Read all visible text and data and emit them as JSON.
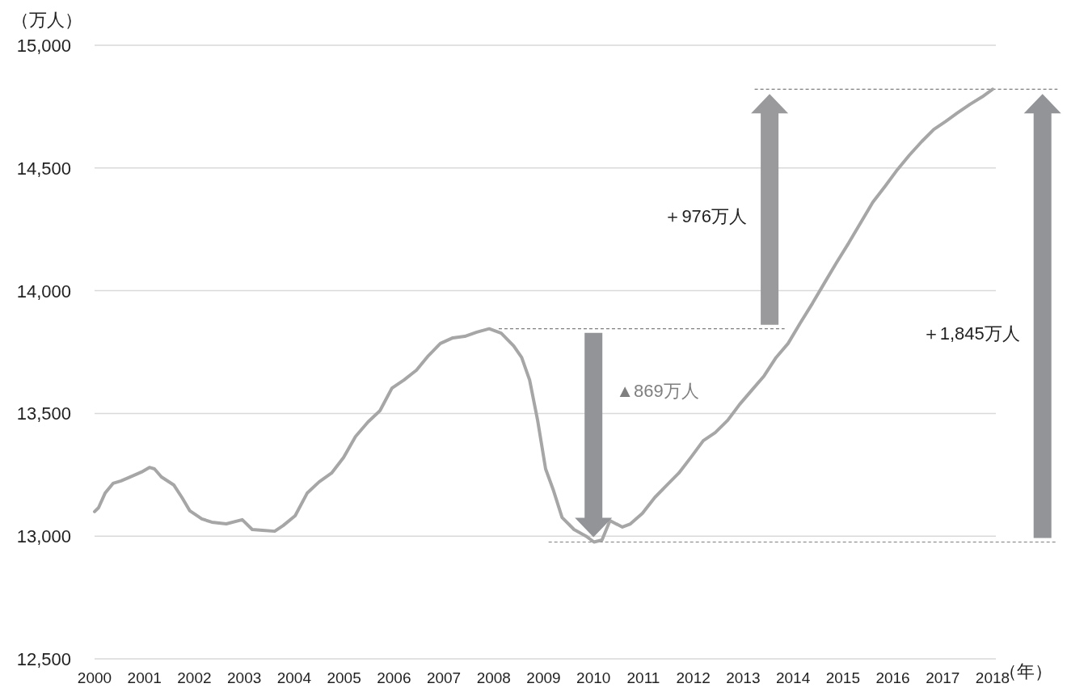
{
  "chart_data": {
    "type": "line",
    "ylabel": "（万人）",
    "xlabel": "（年）",
    "grid": "y",
    "xlim": [
      2000,
      2018
    ],
    "xticks": [
      2000,
      2001,
      2002,
      2003,
      2004,
      2005,
      2006,
      2007,
      2008,
      2009,
      2010,
      2011,
      2012,
      2013,
      2014,
      2015,
      2016,
      2017,
      2018
    ],
    "ylim": [
      12500,
      15000
    ],
    "yticks": [
      {
        "value": 12500,
        "label": "12,500"
      },
      {
        "value": 13000,
        "label": "13,000"
      },
      {
        "value": 13500,
        "label": "13,500"
      },
      {
        "value": 14000,
        "label": "14,000"
      },
      {
        "value": 14500,
        "label": "14,500"
      },
      {
        "value": 15000,
        "label": "15,000"
      }
    ],
    "x": [
      2000.0,
      2000.08,
      2000.21,
      2000.37,
      2000.53,
      2000.7,
      2000.94,
      2001.1,
      2001.2,
      2001.34,
      2001.59,
      2001.75,
      2001.91,
      2002.15,
      2002.35,
      2002.64,
      2002.96,
      2003.16,
      2003.37,
      2003.61,
      2003.78,
      2004.02,
      2004.26,
      2004.5,
      2004.75,
      2004.99,
      2005.23,
      2005.48,
      2005.72,
      2005.96,
      2006.2,
      2006.45,
      2006.69,
      2006.93,
      2007.18,
      2007.42,
      2007.66,
      2007.91,
      2008.15,
      2008.4,
      2008.56,
      2008.72,
      2008.88,
      2009.04,
      2009.2,
      2009.37,
      2009.61,
      2009.85,
      2010.01,
      2010.17,
      2010.33,
      2010.58,
      2010.74,
      2010.98,
      2011.23,
      2011.47,
      2011.71,
      2011.96,
      2012.2,
      2012.44,
      2012.69,
      2012.93,
      2013.17,
      2013.42,
      2013.66,
      2013.9,
      2014.14,
      2014.39,
      2014.63,
      2014.87,
      2015.12,
      2015.36,
      2015.6,
      2015.85,
      2016.09,
      2016.33,
      2016.58,
      2016.82,
      2017.06,
      2017.3,
      2017.55,
      2017.79,
      2018.0
    ],
    "series": [
      {
        "color": "#a6a6a6",
        "values": [
          13100,
          13116,
          13175,
          13215,
          13225,
          13240,
          13261,
          13280,
          13274,
          13241,
          13208,
          13158,
          13103,
          13070,
          13057,
          13050,
          13067,
          13027,
          13024,
          13020,
          13043,
          13083,
          13175,
          13221,
          13257,
          13320,
          13406,
          13465,
          13511,
          13603,
          13636,
          13676,
          13735,
          13785,
          13808,
          13814,
          13831,
          13845,
          13827,
          13775,
          13728,
          13636,
          13472,
          13274,
          13185,
          13076,
          13027,
          13000,
          12976,
          12984,
          13063,
          13037,
          13050,
          13093,
          13158,
          13208,
          13257,
          13323,
          13389,
          13422,
          13472,
          13537,
          13594,
          13653,
          13728,
          13785,
          13867,
          13949,
          14032,
          14114,
          14196,
          14279,
          14361,
          14427,
          14493,
          14552,
          14608,
          14657,
          14690,
          14725,
          14760,
          14790,
          14821
        ]
      }
    ],
    "ref_lines": [
      {
        "axis": "y",
        "value": 13845,
        "color": "#7f7f7f",
        "line_style": "dashed"
      },
      {
        "axis": "y",
        "value": 12976,
        "color": "#7f7f7f",
        "line_style": "dashed"
      },
      {
        "axis": "y",
        "value": 14821,
        "color": "#7f7f7f",
        "line_style": "dashed"
      }
    ],
    "annotations": [
      "＋976万人",
      "▲869万人",
      "＋1,845万人"
    ]
  }
}
